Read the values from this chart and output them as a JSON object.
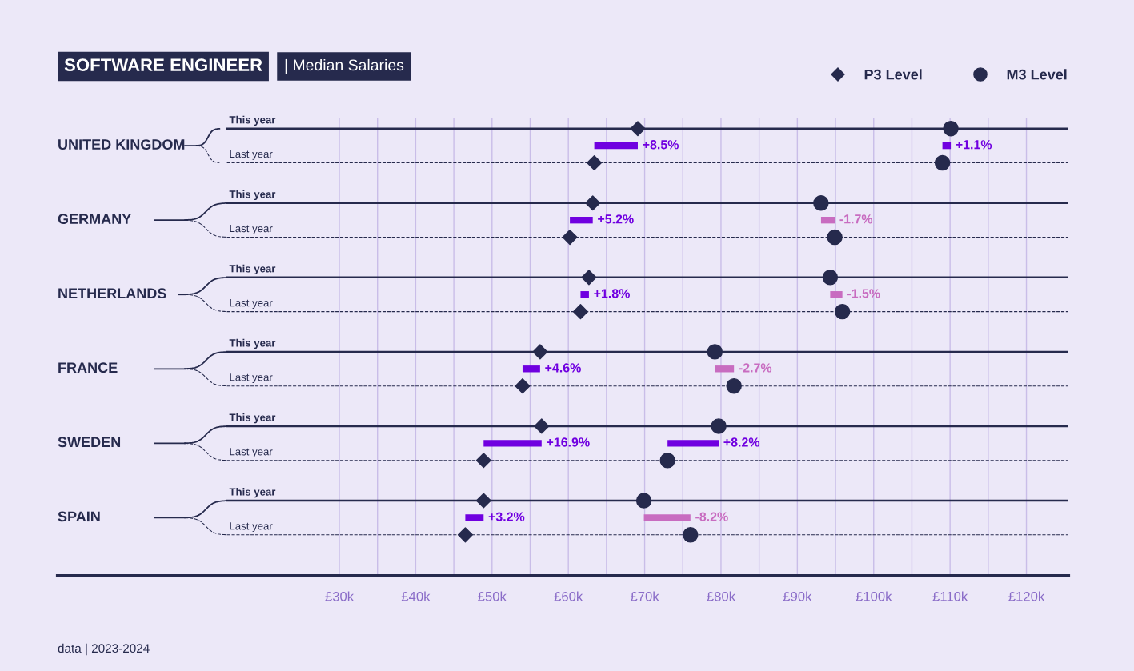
{
  "chart_data": {
    "type": "scatter",
    "orientation": "horizontal",
    "title": "SOFTWARE ENGINEER",
    "subtitle": "| Median Salaries",
    "categories": [
      "UNITED KINGDOM",
      "GERMANY",
      "NETHERLANDS",
      "FRANCE",
      "SWEDEN",
      "SPAIN"
    ],
    "series": [
      {
        "name": "P3 Level",
        "marker": "diamond",
        "color": "#262a4d",
        "values": [
          69.1,
          63.2,
          62.7,
          56.3,
          56.5,
          48.9
        ]
      },
      {
        "marker": "diamond",
        "color": "#262a4d",
        "values": [
          63.4,
          60.2,
          61.6,
          54.0,
          48.9,
          46.5
        ]
      },
      {
        "name": "M3 Level",
        "marker": "circle",
        "color": "#262a4d",
        "values": [
          110.1,
          93.1,
          94.3,
          79.2,
          79.7,
          69.9
        ]
      },
      {
        "marker": "circle",
        "color": "#262a4d",
        "values": [
          109.0,
          94.9,
          95.9,
          81.7,
          73.0,
          76.0
        ]
      },
      {
        "type": "bar",
        "base": [
          63.4,
          60.2,
          61.6,
          54.0,
          48.9,
          46.5
        ],
        "values": [
          5.7,
          3.0,
          1.1,
          2.3,
          7.6,
          2.4
        ],
        "colors": [
          "#7000e0",
          "#7000e0",
          "#7000e0",
          "#7000e0",
          "#7000e0",
          "#7000e0"
        ]
      },
      {
        "type": "bar",
        "base": [
          109.0,
          94.9,
          95.9,
          81.7,
          73.0,
          76.0
        ],
        "values": [
          1.1,
          -1.8,
          -1.6,
          -2.5,
          6.7,
          -6.1
        ],
        "colors": [
          "#7000e0",
          "#c86cc0",
          "#c86cc0",
          "#c86cc0",
          "#7000e0",
          "#c86cc0"
        ]
      }
    ],
    "xlim": [
      -6.9,
      125.5
    ],
    "xticks": [
      {
        "value": 30,
        "label": "£30k"
      },
      {
        "value": 35,
        "label": null
      },
      {
        "value": 40,
        "label": "£40k"
      },
      {
        "value": 45,
        "label": null
      },
      {
        "value": 50,
        "label": "£50k"
      },
      {
        "value": 55,
        "label": null
      },
      {
        "value": 60,
        "label": "£60k"
      },
      {
        "value": 65,
        "label": null
      },
      {
        "value": 70,
        "label": "£70k"
      },
      {
        "value": 75,
        "label": null
      },
      {
        "value": 80,
        "label": "£80k"
      },
      {
        "value": 85,
        "label": null
      },
      {
        "value": 90,
        "label": "£90k"
      },
      {
        "value": 95,
        "label": null
      },
      {
        "value": 100,
        "label": "£100k"
      },
      {
        "value": 105,
        "label": null
      },
      {
        "value": 110,
        "label": "£110k"
      },
      {
        "value": 115,
        "label": null
      },
      {
        "value": 120,
        "label": "£120k"
      }
    ],
    "grid": "x",
    "legend": "top right",
    "annotations": [
      "This year",
      "Last year",
      "This year",
      "Last year",
      "This year",
      "Last year",
      "This year",
      "Last year",
      "This year",
      "Last year",
      "This year",
      "Last year",
      {
        "text": "+8.5%",
        "x": 69.1,
        "y": "UNITED KINGDOM"
      },
      {
        "text": "+5.2%",
        "x": 63.2,
        "y": "GERMANY"
      },
      {
        "text": "+1.8%",
        "x": 62.7,
        "y": "NETHERLANDS"
      },
      {
        "text": "+4.6%",
        "x": 56.3,
        "y": "FRANCE"
      },
      {
        "text": "+16.9%",
        "x": 56.5,
        "y": "SWEDEN"
      },
      {
        "text": "+3.2%",
        "x": 48.9,
        "y": "SPAIN"
      },
      {
        "text": "+1.1%",
        "x": 110.1,
        "y": "UNITED KINGDOM"
      },
      {
        "text": "-1.7%",
        "x": 94.9,
        "y": "GERMANY"
      },
      {
        "text": "-1.5%",
        "x": 95.9,
        "y": "NETHERLANDS"
      },
      {
        "text": "-2.7%",
        "x": 81.7,
        "y": "FRANCE"
      },
      {
        "text": "+8.2%",
        "x": 79.7,
        "y": "SWEDEN"
      },
      {
        "text": "-8.2%",
        "x": 76.0,
        "y": "SPAIN"
      },
      "data | 2023-2024"
    ]
  }
}
